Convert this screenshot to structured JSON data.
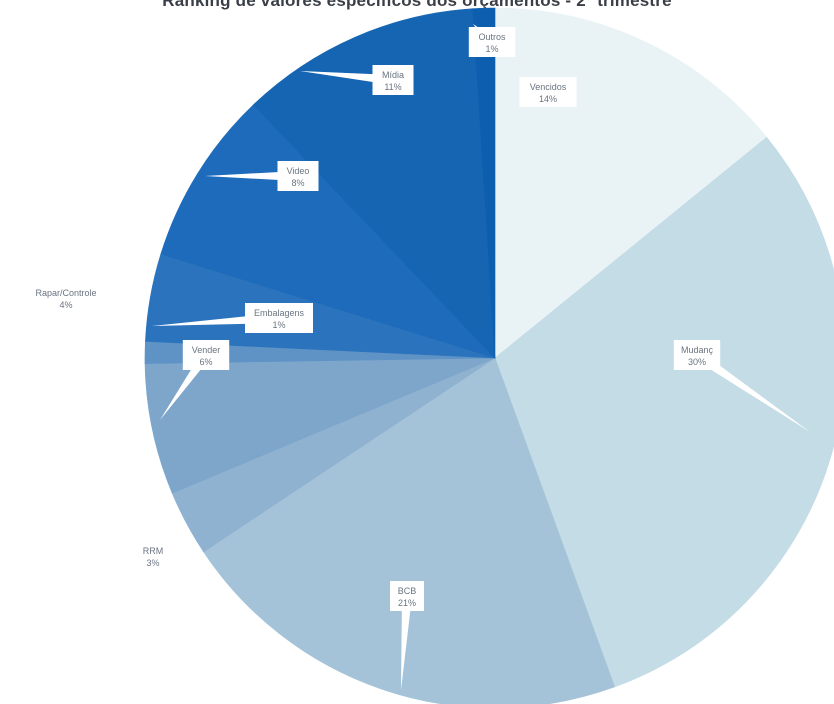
{
  "chart_data": {
    "type": "pie",
    "title": "Ranking de valores específicos dos orçamentos - 2º trimestre",
    "slices": [
      {
        "label": "Vencidos",
        "percent": 14,
        "value_label": "14%",
        "color": "#e9f3f6"
      },
      {
        "label": "Mudanç",
        "percent": 30,
        "value_label": "30%",
        "color": "#c4dce6"
      },
      {
        "label": "BCB",
        "percent": 21,
        "value_label": "21%",
        "color": "#a5c3d8"
      },
      {
        "label": "RRM",
        "percent": 3,
        "value_label": "3%",
        "color": "#8fb2d0"
      },
      {
        "label": "Vender",
        "percent": 6,
        "value_label": "6%",
        "color": "#7ea6cb"
      },
      {
        "label": "Embalagens",
        "percent": 1,
        "value_label": "1%",
        "color": "#5f93c6"
      },
      {
        "label": "Rapar/Controle",
        "percent": 4,
        "value_label": "4%",
        "color": "#2b74bd"
      },
      {
        "label": "Video",
        "percent": 8,
        "value_label": "8%",
        "color": "#1d6bba"
      },
      {
        "label": "Mídia",
        "percent": 11,
        "value_label": "11%",
        "color": "#1565b3"
      },
      {
        "label": "Outros",
        "percent": 1,
        "value_label": "1%",
        "color": "#0d5eae"
      }
    ]
  }
}
